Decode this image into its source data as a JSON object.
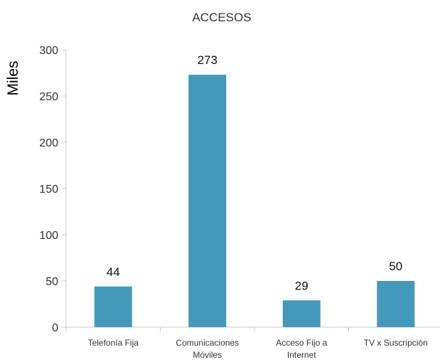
{
  "chart_data": {
    "type": "bar",
    "title": "ACCESOS",
    "ylabel": "Miles",
    "xlabel": "",
    "ylim": [
      0,
      300
    ],
    "yticks": [
      0,
      50,
      100,
      150,
      200,
      250,
      300
    ],
    "grid": false,
    "categories": [
      [
        "Telefonía Fija"
      ],
      [
        "Comunicaciones",
        "Móviles"
      ],
      [
        "Acceso Fijo a",
        "Internet"
      ],
      [
        "TV x Suscripción"
      ]
    ],
    "values": [
      44,
      273,
      29,
      50
    ],
    "data_labels": [
      "44",
      "273",
      "29",
      "50"
    ],
    "bar_color": "#4499bb"
  }
}
